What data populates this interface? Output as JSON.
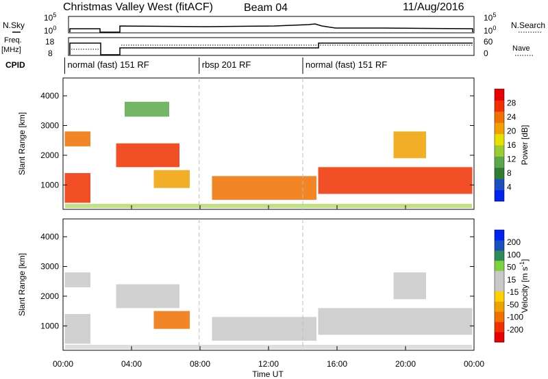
{
  "header": {
    "station": "Christmas Valley West (fitACF)",
    "beam": "Beam 04",
    "date": "11/Aug/2016"
  },
  "strip_labels": {
    "nsky": "N.Sky",
    "nsky_hi": "10^5",
    "nsky_lo": "10^0",
    "nsearch": "N.Search",
    "nsearch_hi": "10^5",
    "nsearch_lo": "10^0",
    "freq": "Freq.",
    "freq_unit": "[MHz]",
    "freq_hi": "18",
    "freq_lo": "8",
    "nave": "Nave",
    "nave_hi": "60",
    "nave_lo": "0",
    "cpid": "CPID"
  },
  "modes": [
    {
      "label": "normal (fast) 151 RF",
      "start_hour": 0.1
    },
    {
      "label": "rbsp 201 RF",
      "start_hour": 7.95
    },
    {
      "label": "normal (fast) 151 RF",
      "start_hour": 14.0
    }
  ],
  "colors": {
    "power": [
      "#0022ee",
      "#1a4fbf",
      "#2e7d32",
      "#5aa84a",
      "#9acd32",
      "#e8e000",
      "#f0a000",
      "#f07000",
      "#f03000",
      "#e80000"
    ],
    "velocity": [
      "#e80000",
      "#f03000",
      "#f07000",
      "#f0a000",
      "#ffd000",
      "#c8c8c8",
      "#c8c8c8",
      "#7fd23c",
      "#2e8b57",
      "#1a4fbf",
      "#0022ee"
    ]
  },
  "chart_data": [
    {
      "type": "heatmap",
      "title": "",
      "xlabel": "",
      "ylabel": "Slant Range [km]",
      "xlim": [
        0,
        24
      ],
      "ylim": [
        180,
        4600
      ],
      "x_ticks": [],
      "y_ticks": [
        "1000",
        "2000",
        "3000",
        "4000"
      ],
      "colorbar_label": "Power [dB]",
      "colorbar_ticks": [
        "4",
        "8",
        "12",
        "16",
        "20",
        "24",
        "28"
      ],
      "colorbar_range": [
        0,
        32
      ],
      "regions": [
        {
          "t0": 0.1,
          "t1": 1.6,
          "r0": 400,
          "r1": 1400,
          "value": 27
        },
        {
          "t0": 0.1,
          "t1": 1.6,
          "r0": 2300,
          "r1": 2800,
          "value": 24
        },
        {
          "t0": 3.1,
          "t1": 6.8,
          "r0": 1600,
          "r1": 2400,
          "value": 26
        },
        {
          "t0": 3.6,
          "t1": 6.2,
          "r0": 3300,
          "r1": 3800,
          "value": 12
        },
        {
          "t0": 5.3,
          "t1": 7.4,
          "r0": 900,
          "r1": 1500,
          "value": 22
        },
        {
          "t0": 8.7,
          "t1": 14.8,
          "r0": 500,
          "r1": 1300,
          "value": 24
        },
        {
          "t0": 14.9,
          "t1": 23.9,
          "r0": 700,
          "r1": 1600,
          "value": 28
        },
        {
          "t0": 19.3,
          "t1": 21.2,
          "r0": 1900,
          "r1": 2800,
          "value": 20
        }
      ]
    },
    {
      "type": "heatmap",
      "title": "",
      "xlabel": "Time UT",
      "ylabel": "Slant Range [km]",
      "xlim": [
        0,
        24
      ],
      "ylim": [
        180,
        4600
      ],
      "x_ticks": [
        "00:00",
        "04:00",
        "08:00",
        "12:00",
        "16:00",
        "20:00",
        "00:00"
      ],
      "y_ticks": [
        "1000",
        "2000",
        "3000",
        "4000"
      ],
      "colorbar_label": "Velocity [m s^-1]",
      "colorbar_ticks": [
        "200",
        "100",
        "50",
        "15",
        "-15",
        "-50",
        "-100",
        "-200"
      ],
      "colorbar_range": [
        -250,
        250
      ],
      "regions": [
        {
          "t0": 0.1,
          "t1": 1.6,
          "r0": 400,
          "r1": 1400,
          "value": 0
        },
        {
          "t0": 0.1,
          "t1": 1.6,
          "r0": 2300,
          "r1": 2800,
          "value": 0
        },
        {
          "t0": 3.1,
          "t1": 6.8,
          "r0": 1600,
          "r1": 2400,
          "value": 0
        },
        {
          "t0": 5.3,
          "t1": 7.4,
          "r0": 900,
          "r1": 1500,
          "value": -80
        },
        {
          "t0": 8.7,
          "t1": 14.8,
          "r0": 500,
          "r1": 1300,
          "value": 0
        },
        {
          "t0": 14.9,
          "t1": 23.9,
          "r0": 700,
          "r1": 1600,
          "value": 0
        },
        {
          "t0": 19.3,
          "t1": 21.2,
          "r0": 1900,
          "r1": 2800,
          "value": 0
        }
      ]
    }
  ]
}
